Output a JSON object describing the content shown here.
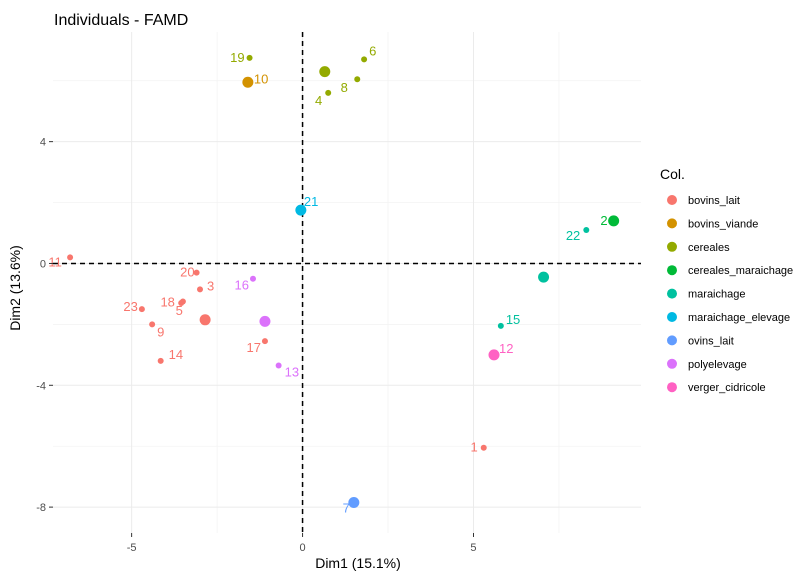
{
  "chart_data": {
    "type": "scatter",
    "title": "Individuals - FAMD",
    "xlabel": "Dim1 (15.1%)",
    "ylabel": "Dim2 (13.6%)",
    "xlim": [
      -7.3,
      9.9
    ],
    "ylim": [
      -8.85,
      7.6
    ],
    "xticks": [
      -5,
      0,
      5
    ],
    "xtick_labels": [
      "-5",
      "0",
      "5"
    ],
    "yticks": [
      -8,
      -4,
      0,
      4
    ],
    "ytick_labels": [
      "-8",
      "-4",
      "0",
      "4"
    ],
    "grid": true,
    "reference_lines": {
      "x": 0,
      "y": 0,
      "style": "dashed"
    },
    "legend": {
      "title": "Col.",
      "position": "right"
    },
    "groups": [
      {
        "name": "bovins_lait",
        "color": "#F8766D"
      },
      {
        "name": "bovins_viande",
        "color": "#D39200"
      },
      {
        "name": "cereales",
        "color": "#93AA00"
      },
      {
        "name": "cereales_maraichage",
        "color": "#00BA38"
      },
      {
        "name": "maraichage",
        "color": "#00C19F"
      },
      {
        "name": "maraichage_elevage",
        "color": "#00B9E3"
      },
      {
        "name": "ovins_lait",
        "color": "#619CFF"
      },
      {
        "name": "polyelevage",
        "color": "#DB72FB"
      },
      {
        "name": "verger_cidricole",
        "color": "#FF61C3"
      }
    ],
    "points": [
      {
        "label": "1",
        "x": 5.3,
        "y": -6.05,
        "group": "bovins_lait"
      },
      {
        "label": "2",
        "x": 9.1,
        "y": 1.4,
        "group": "cereales_maraichage"
      },
      {
        "label": "3",
        "x": -3.0,
        "y": -0.85,
        "group": "bovins_lait"
      },
      {
        "label": "4",
        "x": 0.75,
        "y": 5.6,
        "group": "cereales"
      },
      {
        "label": "5",
        "x": -3.55,
        "y": -1.3,
        "group": "bovins_lait"
      },
      {
        "label": "6",
        "x": 1.8,
        "y": 6.7,
        "group": "cereales"
      },
      {
        "label": "7",
        "x": 1.5,
        "y": -7.85,
        "group": "ovins_lait"
      },
      {
        "label": "8",
        "x": 1.6,
        "y": 6.05,
        "group": "cereales"
      },
      {
        "label": "9",
        "x": -4.4,
        "y": -2.0,
        "group": "bovins_lait"
      },
      {
        "label": "10",
        "x": -1.6,
        "y": 5.95,
        "group": "bovins_viande"
      },
      {
        "label": "11",
        "x": -6.8,
        "y": 0.2,
        "group": "bovins_lait"
      },
      {
        "label": "12",
        "x": 5.6,
        "y": -3.0,
        "group": "verger_cidricole"
      },
      {
        "label": "13",
        "x": -0.7,
        "y": -3.35,
        "group": "polyelevage"
      },
      {
        "label": "14",
        "x": -4.15,
        "y": -3.2,
        "group": "bovins_lait"
      },
      {
        "label": "15",
        "x": 5.8,
        "y": -2.05,
        "group": "maraichage"
      },
      {
        "label": "16",
        "x": -1.45,
        "y": -0.5,
        "group": "polyelevage"
      },
      {
        "label": "17",
        "x": -1.1,
        "y": -2.55,
        "group": "bovins_lait"
      },
      {
        "label": "18",
        "x": -3.5,
        "y": -1.25,
        "group": "bovins_lait"
      },
      {
        "label": "19",
        "x": -1.55,
        "y": 6.75,
        "group": "cereales"
      },
      {
        "label": "20",
        "x": -3.1,
        "y": -0.3,
        "group": "bovins_lait"
      },
      {
        "label": "21",
        "x": -0.05,
        "y": 1.75,
        "group": "maraichage_elevage"
      },
      {
        "label": "22",
        "x": 8.3,
        "y": 1.1,
        "group": "maraichage"
      },
      {
        "label": "23",
        "x": -4.7,
        "y": -1.5,
        "group": "bovins_lait"
      },
      {
        "label": "",
        "x": -2.85,
        "y": -1.85,
        "group": "bovins_lait",
        "mean": true
      },
      {
        "label": "",
        "x": -1.6,
        "y": 5.95,
        "group": "bovins_viande",
        "mean": true
      },
      {
        "label": "",
        "x": 0.65,
        "y": 6.3,
        "group": "cereales",
        "mean": true
      },
      {
        "label": "",
        "x": 9.1,
        "y": 1.4,
        "group": "cereales_maraichage",
        "mean": true
      },
      {
        "label": "",
        "x": 7.05,
        "y": -0.45,
        "group": "maraichage",
        "mean": true
      },
      {
        "label": "",
        "x": -0.05,
        "y": 1.75,
        "group": "maraichage_elevage",
        "mean": true
      },
      {
        "label": "",
        "x": 1.5,
        "y": -7.85,
        "group": "ovins_lait",
        "mean": true
      },
      {
        "label": "",
        "x": -1.1,
        "y": -1.9,
        "group": "polyelevage",
        "mean": true
      },
      {
        "label": "",
        "x": 5.6,
        "y": -3.0,
        "group": "verger_cidricole",
        "mean": true
      }
    ]
  }
}
